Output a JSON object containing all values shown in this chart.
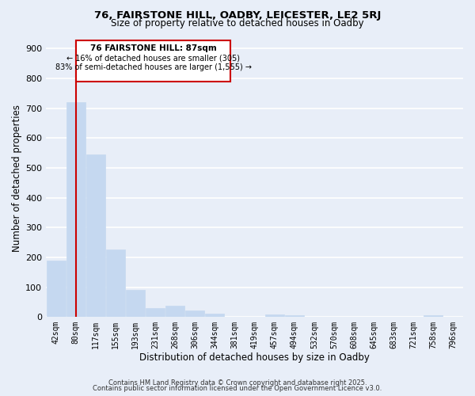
{
  "title": "76, FAIRSTONE HILL, OADBY, LEICESTER, LE2 5RJ",
  "subtitle": "Size of property relative to detached houses in Oadby",
  "xlabel": "Distribution of detached houses by size in Oadby",
  "ylabel": "Number of detached properties",
  "bar_labels": [
    "42sqm",
    "80sqm",
    "117sqm",
    "155sqm",
    "193sqm",
    "231sqm",
    "268sqm",
    "306sqm",
    "344sqm",
    "381sqm",
    "419sqm",
    "457sqm",
    "494sqm",
    "532sqm",
    "570sqm",
    "608sqm",
    "645sqm",
    "683sqm",
    "721sqm",
    "758sqm",
    "796sqm"
  ],
  "bar_values": [
    190,
    720,
    545,
    225,
    90,
    30,
    38,
    22,
    10,
    0,
    0,
    9,
    5,
    0,
    0,
    0,
    0,
    0,
    0,
    7,
    0
  ],
  "bar_color": "#c5d8f0",
  "bar_edge_color": "#c5d8f0",
  "ylim": [
    0,
    930
  ],
  "yticks": [
    0,
    100,
    200,
    300,
    400,
    500,
    600,
    700,
    800,
    900
  ],
  "property_line_x": 1.0,
  "property_line_color": "#cc0000",
  "annotation_title": "76 FAIRSTONE HILL: 87sqm",
  "annotation_line1": "← 16% of detached houses are smaller (305)",
  "annotation_line2": "83% of semi-detached houses are larger (1,555) →",
  "annotation_box_color": "#ffffff",
  "annotation_box_edge": "#cc0000",
  "footer1": "Contains HM Land Registry data © Crown copyright and database right 2025.",
  "footer2": "Contains public sector information licensed under the Open Government Licence v3.0.",
  "background_color": "#e8eef8",
  "grid_color": "#ffffff"
}
